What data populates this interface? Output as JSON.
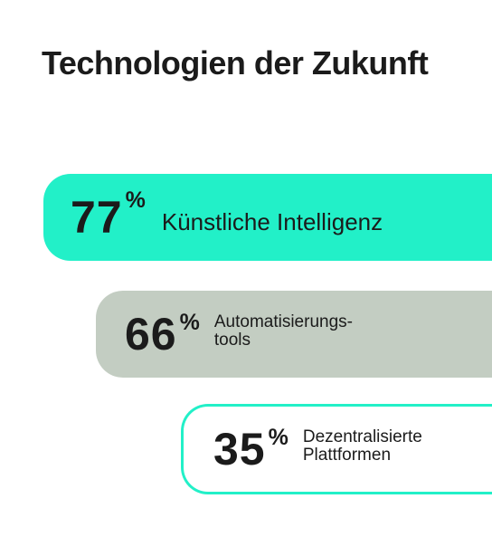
{
  "chart_data": {
    "type": "bar",
    "title": "Technologien der Zukunft",
    "categories": [
      "Künstliche Intelligenz",
      "Automatisierungs-tools",
      "Dezentralisierte Plattformen"
    ],
    "values": [
      77,
      66,
      35
    ],
    "unit": "%",
    "series": [
      {
        "label": "Künstliche Intelligenz",
        "label_lines": [
          "Künstliche Intelligenz"
        ],
        "value": 77,
        "value_text": "77",
        "color": "#22f0c8",
        "style": "filled"
      },
      {
        "label": "Automatisierungs-tools",
        "label_lines": [
          "Automatisierungs-",
          "tools"
        ],
        "value": 66,
        "value_text": "66",
        "color": "#c3cdc2",
        "style": "filled"
      },
      {
        "label": "Dezentralisierte Plattformen",
        "label_lines": [
          "Dezentralisierte",
          "Plattformen"
        ],
        "value": 35,
        "value_text": "35",
        "color": "#22f0c8",
        "style": "outline"
      }
    ]
  },
  "colors": {
    "text": "#1b1b1b",
    "background": "#ffffff"
  }
}
